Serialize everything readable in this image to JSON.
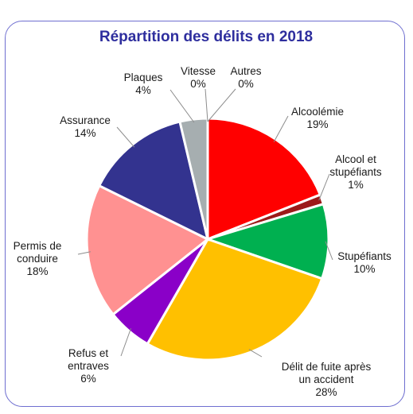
{
  "chart_data": {
    "type": "pie",
    "title": "Répartition des délits en 2018",
    "title_color": "#2e2e9e",
    "frame_color": "#6f6fd0",
    "slices": [
      {
        "label": [
          "Alcoolémie"
        ],
        "pct": "19%",
        "value": 19,
        "color": "#ff0000"
      },
      {
        "label": [
          "Alcool et",
          "stupéfiants"
        ],
        "pct": "1%",
        "value": 1.3,
        "color": "#9c1a1a"
      },
      {
        "label": [
          "Stupéfiants"
        ],
        "pct": "10%",
        "value": 10,
        "color": "#00b050"
      },
      {
        "label": [
          "Délit de fuite après",
          "un accident"
        ],
        "pct": "28%",
        "value": 28,
        "color": "#ffc000"
      },
      {
        "label": [
          "Refus et",
          "entraves"
        ],
        "pct": "6%",
        "value": 6,
        "color": "#8a00c8"
      },
      {
        "label": [
          "Permis de",
          "conduire"
        ],
        "pct": "18%",
        "value": 18,
        "color": "#ff9191"
      },
      {
        "label": [
          "Assurance"
        ],
        "pct": "14%",
        "value": 14,
        "color": "#33338f"
      },
      {
        "label": [
          "Plaques"
        ],
        "pct": "4%",
        "value": 3.7,
        "color": "#a6aeb0"
      },
      {
        "label": [
          "Vitesse"
        ],
        "pct": "0%",
        "value": 0,
        "color": "#d9d9d9"
      },
      {
        "label": [
          "Autres"
        ],
        "pct": "0%",
        "value": 0,
        "color": "#bfbfbf"
      }
    ]
  }
}
